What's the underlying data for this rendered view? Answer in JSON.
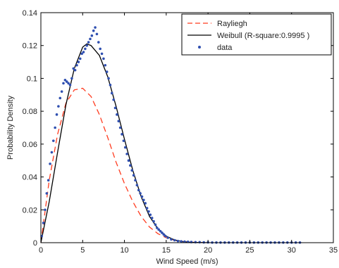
{
  "chart_data": {
    "type": "line",
    "xlabel": "Wind Speed (m/s)",
    "ylabel": "Probability Density",
    "xlim": [
      0,
      35
    ],
    "ylim": [
      0,
      0.14
    ],
    "x_ticks": [
      "0",
      "5",
      "10",
      "15",
      "20",
      "25",
      "30",
      "35"
    ],
    "y_ticks": [
      "0",
      "0.02",
      "0.04",
      "0.06",
      "0.08",
      "0.1",
      "0.12",
      "0.14"
    ],
    "grid": false,
    "legend_position": "top-right",
    "legend": [
      {
        "label": "Rayliegh",
        "style": "dashed",
        "color": "#ff3b1f"
      },
      {
        "label": "Weibull (R-square:0.9995 )",
        "style": "solid",
        "color": "#000000"
      },
      {
        "label": "data",
        "style": "marker",
        "color": "#2f4fb0"
      }
    ],
    "series": [
      {
        "name": "Rayliegh",
        "style": "dashed",
        "color": "#ff3b1f",
        "x": [
          0,
          1,
          2,
          3,
          4,
          5,
          6,
          7,
          8,
          9,
          10,
          11,
          12,
          13,
          14,
          15,
          16,
          17,
          18,
          19,
          20
        ],
        "y": [
          0,
          0.038,
          0.066,
          0.085,
          0.093,
          0.094,
          0.089,
          0.078,
          0.064,
          0.049,
          0.036,
          0.025,
          0.016,
          0.0095,
          0.0055,
          0.003,
          0.0015,
          0.0007,
          0.0003,
          0.0001,
          0
        ]
      },
      {
        "name": "Weibull (R-square:0.9995 )",
        "style": "solid",
        "color": "#000000",
        "x": [
          0,
          1,
          2,
          3,
          4,
          5,
          5.5,
          6,
          7,
          8,
          9,
          10,
          11,
          12,
          13,
          14,
          15,
          16,
          17,
          18,
          19,
          20
        ],
        "y": [
          0,
          0.025,
          0.055,
          0.084,
          0.106,
          0.119,
          0.121,
          0.12,
          0.114,
          0.101,
          0.083,
          0.063,
          0.044,
          0.028,
          0.016,
          0.0085,
          0.004,
          0.0017,
          0.0006,
          0.0002,
          0.0001,
          0
        ]
      },
      {
        "name": "data",
        "style": "marker",
        "color": "#2f4fb0",
        "x": [
          0.1,
          0.3,
          0.5,
          0.7,
          0.9,
          1.1,
          1.3,
          1.5,
          1.7,
          1.9,
          2.1,
          2.3,
          2.5,
          2.7,
          2.9,
          3.1,
          3.3,
          3.5,
          3.7,
          3.9,
          4.1,
          4.3,
          4.5,
          4.7,
          4.9,
          5.1,
          5.3,
          5.5,
          5.7,
          5.9,
          6.1,
          6.3,
          6.5,
          6.7,
          6.9,
          7.1,
          7.3,
          7.5,
          7.7,
          7.9,
          8.1,
          8.3,
          8.5,
          8.7,
          8.9,
          9.1,
          9.3,
          9.5,
          9.7,
          9.9,
          10.1,
          10.3,
          10.5,
          10.7,
          10.9,
          11.1,
          11.3,
          11.5,
          11.7,
          11.9,
          12.1,
          12.3,
          12.5,
          12.7,
          12.9,
          13.1,
          13.3,
          13.5,
          13.7,
          13.9,
          14.1,
          14.3,
          14.5,
          14.7,
          14.9,
          15.2,
          15.6,
          16.0,
          16.4,
          16.8,
          17.2,
          17.6,
          18.0,
          18.5,
          19.0,
          19.5,
          20.0,
          20.5,
          21.0,
          21.5,
          22.0,
          22.5,
          23.0,
          23.5,
          24.0,
          24.5,
          25.0,
          25.5,
          26.0,
          26.5,
          27.0,
          27.5,
          28.0,
          28.5,
          29.0,
          29.5,
          30.0,
          30.5,
          31.0
        ],
        "y": [
          0.004,
          0.012,
          0.02,
          0.03,
          0.038,
          0.048,
          0.055,
          0.062,
          0.07,
          0.078,
          0.083,
          0.088,
          0.092,
          0.097,
          0.099,
          0.098,
          0.097,
          0.096,
          0.1,
          0.106,
          0.105,
          0.108,
          0.11,
          0.112,
          0.115,
          0.116,
          0.118,
          0.12,
          0.122,
          0.124,
          0.126,
          0.129,
          0.131,
          0.127,
          0.122,
          0.118,
          0.115,
          0.112,
          0.108,
          0.104,
          0.1,
          0.096,
          0.091,
          0.087,
          0.082,
          0.078,
          0.074,
          0.07,
          0.066,
          0.062,
          0.058,
          0.054,
          0.05,
          0.047,
          0.044,
          0.041,
          0.038,
          0.035,
          0.032,
          0.03,
          0.028,
          0.026,
          0.024,
          0.021,
          0.019,
          0.017,
          0.015,
          0.013,
          0.011,
          0.009,
          0.008,
          0.007,
          0.006,
          0.005,
          0.004,
          0.003,
          0.002,
          0.0015,
          0.001,
          0.0008,
          0.0006,
          0.0005,
          0.0004,
          0.0003,
          0.0003,
          0.0002,
          0.0002,
          0.0001,
          0.0001,
          0.0001,
          0.0001,
          0.0001,
          0.0001,
          0.0001,
          0.0001,
          0.0001,
          0.0001,
          0.0001,
          0.0001,
          0.0001,
          0.0001,
          0.0001,
          0.0001,
          0.0001,
          0.0001,
          0.0001,
          0.0001,
          0.0001,
          0.0001
        ]
      }
    ]
  }
}
